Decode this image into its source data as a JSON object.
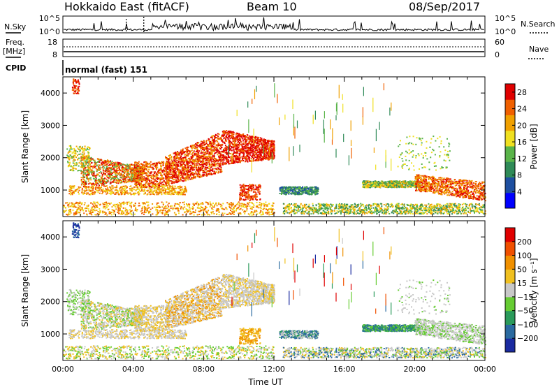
{
  "header": {
    "station": "Hokkaido East (fitACF)",
    "beam": "Beam 10",
    "date": "08/Sep/2017"
  },
  "top_panels": {
    "nsky_label": "N.Sky",
    "nsearch_label": "N.Search",
    "nsky_ticks": [
      "10^5",
      "10^0"
    ],
    "nsearch_ticks": [
      "10^5",
      "10^0"
    ],
    "freq_label_1": "Freq.",
    "freq_label_2": "[MHz]",
    "freq_ticks": [
      "18",
      "8"
    ],
    "nave_label": "Nave",
    "nave_ticks": [
      "60",
      "0"
    ],
    "cpid_label": "CPID",
    "cpid_text": "normal (fast) 151"
  },
  "chart_data": [
    {
      "type": "heatmap",
      "panel": "power",
      "xlabel": "",
      "ylabel": "Slant Range [km]",
      "x_ticks": [
        "00:00",
        "04:00",
        "08:00",
        "12:00",
        "16:00",
        "20:00",
        "00:00"
      ],
      "xlim_hours": [
        0,
        24
      ],
      "y_ticks": [
        1000,
        2000,
        3000,
        4000
      ],
      "ylim": [
        180,
        4500
      ],
      "colorbar": {
        "label": "Power [dB]",
        "ticks": [
          4,
          8,
          12,
          16,
          20,
          24,
          28
        ],
        "range": [
          0,
          30
        ],
        "colors": [
          "#0000ff",
          "#1e4fa0",
          "#2f8a57",
          "#5ab44a",
          "#f0e020",
          "#f0a000",
          "#f06000",
          "#e00000"
        ]
      }
    },
    {
      "type": "heatmap",
      "panel": "velocity",
      "xlabel": "Time UT",
      "ylabel": "Slant Range [km]",
      "x_ticks": [
        "00:00",
        "04:00",
        "08:00",
        "12:00",
        "16:00",
        "20:00",
        "00:00"
      ],
      "xlim_hours": [
        0,
        24
      ],
      "y_ticks": [
        1000,
        2000,
        3000,
        4000
      ],
      "ylim": [
        180,
        4500
      ],
      "colorbar": {
        "label": "Velocity [m s⁻¹]",
        "ticks": [
          "200",
          "100",
          "50",
          "15",
          "−15",
          "−50",
          "−100",
          "−200"
        ],
        "colors": [
          "#1a2aa0",
          "#2a6aa0",
          "#2a9a5a",
          "#66cc33",
          "#c8c8c8",
          "#f0c020",
          "#f09000",
          "#f05000",
          "#e00000"
        ]
      }
    }
  ]
}
